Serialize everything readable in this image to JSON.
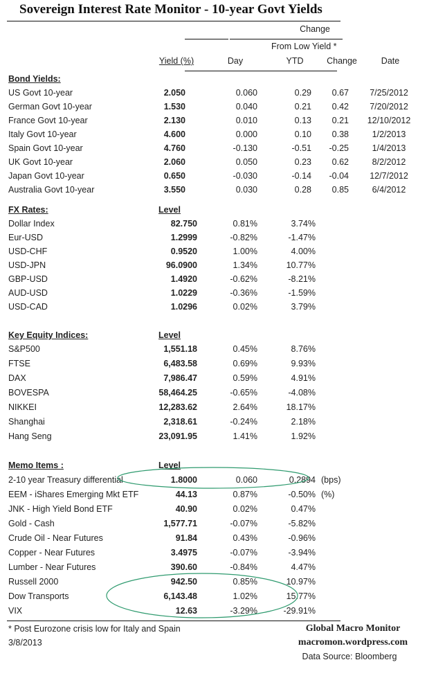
{
  "title": "Sovereign Interest Rate Monitor - 10-year Govt Yields",
  "headers": {
    "change": "Change",
    "from_low": "From Low Yield  *",
    "yield": "Yield (%)",
    "day": "Day",
    "ytd": "YTD",
    "low_change": "Change",
    "low_date": "Date"
  },
  "bond_yields": {
    "label": "Bond Yields:",
    "rows": [
      {
        "name": "US Govt 10-year",
        "yield": "2.050",
        "day": "0.060",
        "ytd": "0.29",
        "low_change": "0.67",
        "low_date": "7/25/2012"
      },
      {
        "name": "German Govt 10-year",
        "yield": "1.530",
        "day": "0.040",
        "ytd": "0.21",
        "low_change": "0.42",
        "low_date": "7/20/2012"
      },
      {
        "name": "France Govt 10-year",
        "yield": "2.130",
        "day": "0.010",
        "ytd": "0.13",
        "low_change": "0.21",
        "low_date": "12/10/2012"
      },
      {
        "name": "Italy Govt 10-year",
        "yield": "4.600",
        "day": "0.000",
        "ytd": "0.10",
        "low_change": "0.38",
        "low_date": "1/2/2013"
      },
      {
        "name": "Spain Govt 10-year",
        "yield": "4.760",
        "day": "-0.130",
        "ytd": "-0.51",
        "low_change": "-0.25",
        "low_date": "1/4/2013"
      },
      {
        "name": "UK Govt 10-year",
        "yield": "2.060",
        "day": "0.050",
        "ytd": "0.23",
        "low_change": "0.62",
        "low_date": "8/2/2012"
      },
      {
        "name": "Japan Govt 10-year",
        "yield": "0.650",
        "day": "-0.030",
        "ytd": "-0.14",
        "low_change": "-0.04",
        "low_date": "12/7/2012"
      },
      {
        "name": "Australia Govt 10-year",
        "yield": "3.550",
        "day": "0.030",
        "ytd": "0.28",
        "low_change": "0.85",
        "low_date": "6/4/2012"
      }
    ]
  },
  "fx_rates": {
    "label": "FX Rates:",
    "level_header": "Level",
    "rows": [
      {
        "name": "Dollar Index",
        "level": "82.750",
        "day": "0.81%",
        "ytd": "3.74%"
      },
      {
        "name": "Eur-USD",
        "level": "1.2999",
        "day": "-0.82%",
        "ytd": "-1.47%"
      },
      {
        "name": "USD-CHF",
        "level": "0.9520",
        "day": "1.00%",
        "ytd": "4.00%"
      },
      {
        "name": "USD-JPN",
        "level": "96.0900",
        "day": "1.34%",
        "ytd": "10.77%"
      },
      {
        "name": "GBP-USD",
        "level": "1.4920",
        "day": "-0.62%",
        "ytd": "-8.21%"
      },
      {
        "name": "AUD-USD",
        "level": "1.0229",
        "day": "-0.36%",
        "ytd": "-1.59%"
      },
      {
        "name": "USD-CAD",
        "level": "1.0296",
        "day": "0.02%",
        "ytd": "3.79%"
      }
    ]
  },
  "equities": {
    "label": "Key Equity Indices:",
    "level_header": "Level",
    "rows": [
      {
        "name": "S&P500",
        "level": "1,551.18",
        "day": "0.45%",
        "ytd": "8.76%"
      },
      {
        "name": "FTSE",
        "level": "6,483.58",
        "day": "0.69%",
        "ytd": "9.93%"
      },
      {
        "name": "DAX",
        "level": "7,986.47",
        "day": "0.59%",
        "ytd": "4.91%"
      },
      {
        "name": "BOVESPA",
        "level": "58,464.25",
        "day": "-0.65%",
        "ytd": "-4.08%"
      },
      {
        "name": "NIKKEI",
        "level": "12,283.62",
        "day": "2.64%",
        "ytd": "18.17%"
      },
      {
        "name": "Shanghai",
        "level": "2,318.61",
        "day": "-0.24%",
        "ytd": "2.18%"
      },
      {
        "name": "Hang Seng",
        "level": "23,091.95",
        "day": "1.41%",
        "ytd": "1.92%"
      }
    ]
  },
  "memo": {
    "label": "Memo Items :",
    "level_header": "Level",
    "rows": [
      {
        "name": "2-10 year Treasury differential",
        "level": "1.8000",
        "day": "0.060",
        "ytd": "0.2894",
        "unit": "(bps)"
      },
      {
        "name": "EEM - iShares Emerging Mkt ETF",
        "level": "44.13",
        "day": "0.87%",
        "ytd": "-0.50%",
        "unit": "(%)"
      },
      {
        "name": "JNK - High Yield Bond ETF",
        "level": "40.90",
        "day": "0.02%",
        "ytd": "0.47%"
      },
      {
        "name": "Gold - Cash",
        "level": "1,577.71",
        "day": "-0.07%",
        "ytd": "-5.82%"
      },
      {
        "name": "Crude Oil - Near Futures",
        "level": "91.84",
        "day": "0.43%",
        "ytd": "-0.96%"
      },
      {
        "name": "Copper - Near Futures",
        "level": "3.4975",
        "day": "-0.07%",
        "ytd": "-3.94%"
      },
      {
        "name": "Lumber - Near Futures",
        "level": "390.60",
        "day": "-0.84%",
        "ytd": "4.47%"
      },
      {
        "name": "Russell 2000",
        "level": "942.50",
        "day": "0.85%",
        "ytd": "10.97%"
      },
      {
        "name": "Dow Transports",
        "level": "6,143.48",
        "day": "1.02%",
        "ytd": "15.77%"
      },
      {
        "name": "VIX",
        "level": "12.63",
        "day": "-3.29%",
        "ytd": "-29.91%"
      }
    ]
  },
  "footer": {
    "footnote": "*  Post Eurozone crisis low for Italy and Spain",
    "date": "3/8/2013",
    "brand": "Global Macro Monitor",
    "site": "macromon.wordpress.com",
    "source": "Data Source:  Bloomberg"
  },
  "colors": {
    "highlight_ellipse": "#2e9a6e",
    "rule": "#111111"
  }
}
